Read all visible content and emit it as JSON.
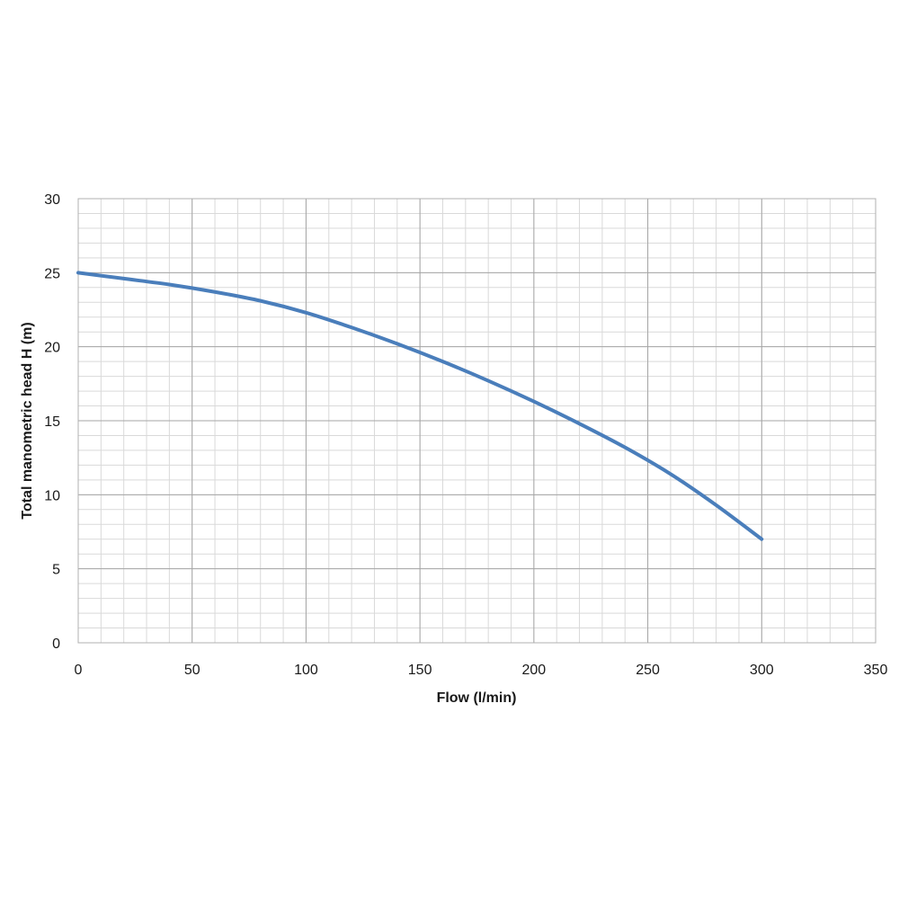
{
  "chart_data": {
    "type": "line",
    "title": "",
    "xlabel": "Flow (l/min)",
    "ylabel": "Total manometric head H (m)",
    "xlim": [
      0,
      350
    ],
    "ylim": [
      0,
      30
    ],
    "x_ticks": [
      0,
      50,
      100,
      150,
      200,
      250,
      300,
      350
    ],
    "y_ticks": [
      0,
      5,
      10,
      15,
      20,
      25,
      30
    ],
    "x_minor_step": 10,
    "y_minor_step": 1,
    "grid": true,
    "series": [
      {
        "color": "#4a7ebb",
        "x": [
          0,
          20,
          40,
          60,
          80,
          100,
          120,
          140,
          160,
          180,
          200,
          220,
          240,
          260,
          280,
          300
        ],
        "y": [
          25.0,
          24.6,
          24.2,
          23.7,
          23.1,
          22.3,
          21.3,
          20.2,
          19.0,
          17.7,
          16.3,
          14.8,
          13.2,
          11.4,
          9.3,
          7.0
        ]
      }
    ]
  }
}
